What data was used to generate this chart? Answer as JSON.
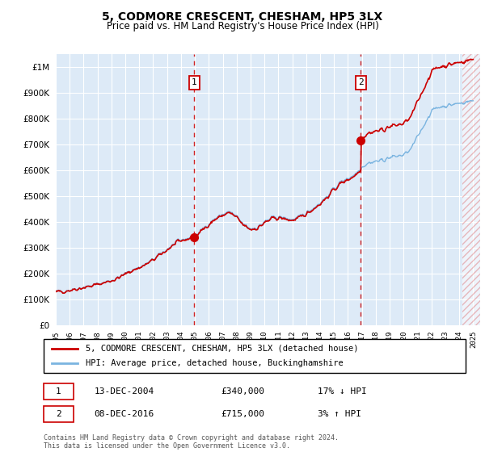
{
  "title": "5, CODMORE CRESCENT, CHESHAM, HP5 3LX",
  "subtitle": "Price paid vs. HM Land Registry's House Price Index (HPI)",
  "ytick_values": [
    0,
    100000,
    200000,
    300000,
    400000,
    500000,
    600000,
    700000,
    800000,
    900000,
    1000000
  ],
  "ylim": [
    0,
    1050000
  ],
  "xlim_start": 1995.0,
  "xlim_end": 2025.5,
  "background_color": "#ddeaf7",
  "grid_color": "#ffffff",
  "hpi_color": "#7ab4e0",
  "price_color": "#cc0000",
  "vline_color": "#cc0000",
  "marker1_x": 2004.95,
  "marker1_y": 340000,
  "marker2_x": 2016.92,
  "marker2_y": 715000,
  "legend_entry1": "5, CODMORE CRESCENT, CHESHAM, HP5 3LX (detached house)",
  "legend_entry2": "HPI: Average price, detached house, Buckinghamshire",
  "annotation1_label": "1",
  "annotation1_date": "13-DEC-2004",
  "annotation1_price": "£340,000",
  "annotation1_hpi": "17% ↓ HPI",
  "annotation2_label": "2",
  "annotation2_date": "08-DEC-2016",
  "annotation2_price": "£715,000",
  "annotation2_hpi": "3% ↑ HPI",
  "footer": "Contains HM Land Registry data © Crown copyright and database right 2024.\nThis data is licensed under the Open Government Licence v3.0.",
  "hatch_start": 2024.25
}
